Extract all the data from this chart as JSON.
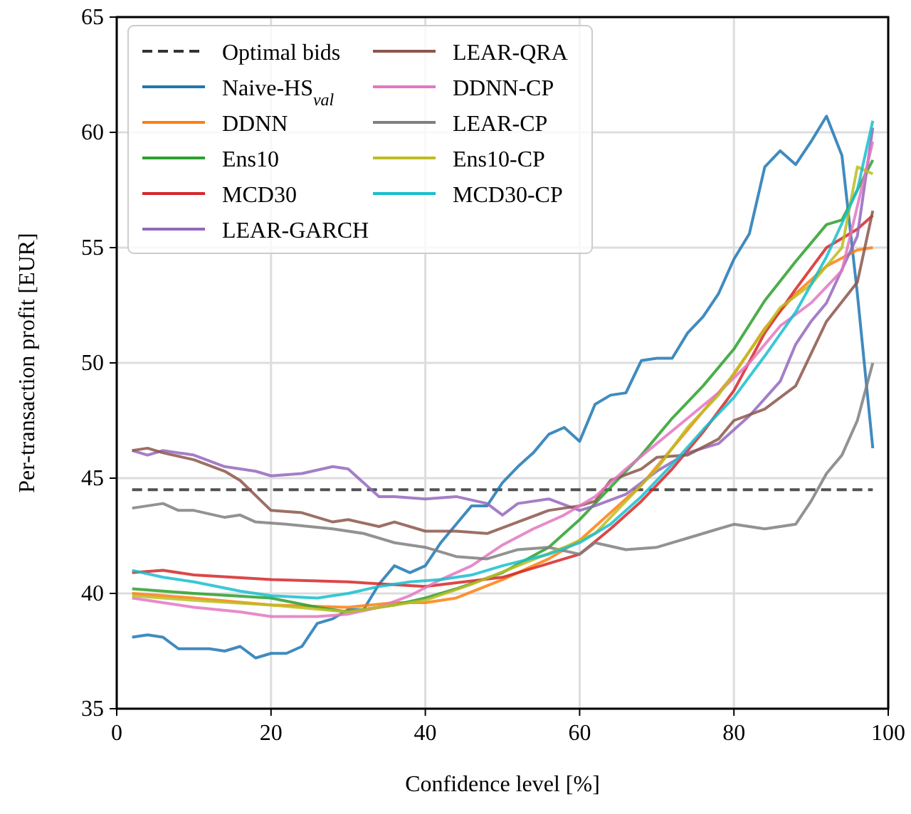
{
  "chart_data": {
    "type": "line",
    "xlabel": "Confidence level [%]",
    "ylabel": "Per-transaction profit [EUR]",
    "xlim": [
      0,
      100
    ],
    "ylim": [
      35,
      65
    ],
    "xticks": [
      0,
      20,
      40,
      60,
      80,
      100
    ],
    "yticks": [
      35,
      40,
      45,
      50,
      55,
      60,
      65
    ],
    "grid": true,
    "legend": "top left",
    "line_style": "solid",
    "marker": "none",
    "series": [
      {
        "name": "Optimal bids",
        "color": "#333333",
        "line_style": "dashed",
        "x": [
          2,
          98
        ],
        "values": [
          44.5,
          44.5
        ]
      },
      {
        "name": "Naive-HS$_{val}$",
        "color": "#1f77b4",
        "x": [
          2,
          4,
          6,
          8,
          10,
          12,
          14,
          16,
          18,
          20,
          22,
          24,
          26,
          28,
          30,
          32,
          34,
          36,
          38,
          40,
          42,
          44,
          46,
          48,
          50,
          52,
          54,
          56,
          58,
          60,
          62,
          64,
          66,
          68,
          70,
          72,
          74,
          76,
          78,
          80,
          82,
          84,
          86,
          88,
          90,
          92,
          94,
          96,
          98
        ],
        "values": [
          38.1,
          38.2,
          38.1,
          37.6,
          37.6,
          37.6,
          37.5,
          37.7,
          37.2,
          37.4,
          37.4,
          37.7,
          38.7,
          38.9,
          39.3,
          39.3,
          40.4,
          41.2,
          40.9,
          41.2,
          42.2,
          43.0,
          43.8,
          43.8,
          44.8,
          45.5,
          46.1,
          46.9,
          47.2,
          46.6,
          48.2,
          48.6,
          48.7,
          50.1,
          50.2,
          50.2,
          51.3,
          52.0,
          53.0,
          54.5,
          55.6,
          58.5,
          59.2,
          58.6,
          59.6,
          60.7,
          59.0,
          53.0,
          46.3
        ]
      },
      {
        "name": "DDNN",
        "color": "#ff7f0e",
        "x": [
          2,
          10,
          20,
          30,
          36,
          40,
          44,
          50,
          56,
          60,
          64,
          68,
          72,
          76,
          80,
          84,
          88,
          92,
          96,
          98
        ],
        "values": [
          40.0,
          39.8,
          39.5,
          39.4,
          39.6,
          39.6,
          39.8,
          40.6,
          41.5,
          42.3,
          43.5,
          44.7,
          46.3,
          47.9,
          49.5,
          51.5,
          53.0,
          54.2,
          54.9,
          55.0
        ]
      },
      {
        "name": "Ens10",
        "color": "#2ca02c",
        "x": [
          2,
          10,
          20,
          26,
          30,
          36,
          40,
          44,
          50,
          56,
          60,
          64,
          68,
          72,
          76,
          80,
          84,
          88,
          92,
          94,
          98
        ],
        "values": [
          40.2,
          40.0,
          39.8,
          39.4,
          39.2,
          39.5,
          39.8,
          40.2,
          40.9,
          42.0,
          43.2,
          44.6,
          46.0,
          47.6,
          49.0,
          50.6,
          52.7,
          54.4,
          56.0,
          56.2,
          58.8
        ]
      },
      {
        "name": "MCD30",
        "color": "#d62728",
        "x": [
          2,
          6,
          10,
          20,
          30,
          40,
          50,
          56,
          60,
          64,
          68,
          72,
          76,
          80,
          84,
          88,
          92,
          96,
          98
        ],
        "values": [
          40.9,
          41.0,
          40.8,
          40.6,
          40.5,
          40.3,
          40.7,
          41.3,
          41.7,
          42.8,
          44.0,
          45.4,
          47.0,
          48.8,
          51.3,
          53.2,
          55.0,
          55.8,
          56.4
        ]
      },
      {
        "name": "LEAR-GARCH",
        "color": "#9467bd",
        "x": [
          2,
          4,
          6,
          10,
          14,
          18,
          20,
          24,
          28,
          30,
          34,
          36,
          40,
          44,
          48,
          50,
          52,
          56,
          60,
          62,
          66,
          70,
          74,
          78,
          82,
          86,
          88,
          90,
          92,
          96,
          98
        ],
        "values": [
          46.2,
          46.0,
          46.2,
          46.0,
          45.5,
          45.3,
          45.1,
          45.2,
          45.5,
          45.4,
          44.2,
          44.2,
          44.1,
          44.2,
          43.9,
          43.4,
          43.9,
          44.1,
          43.6,
          43.8,
          44.3,
          45.3,
          46.1,
          46.5,
          47.7,
          49.2,
          50.8,
          51.8,
          52.6,
          55.5,
          60.2
        ]
      },
      {
        "name": "LEAR-QRA",
        "color": "#8c564b",
        "x": [
          2,
          4,
          6,
          10,
          14,
          16,
          20,
          24,
          28,
          30,
          34,
          36,
          40,
          44,
          48,
          52,
          56,
          60,
          62,
          64,
          68,
          70,
          74,
          78,
          80,
          84,
          88,
          92,
          96,
          98
        ],
        "values": [
          46.2,
          46.3,
          46.1,
          45.8,
          45.3,
          44.9,
          43.6,
          43.5,
          43.1,
          43.2,
          42.9,
          43.1,
          42.7,
          42.7,
          42.6,
          43.1,
          43.6,
          43.8,
          44.0,
          44.9,
          45.4,
          45.9,
          46.0,
          46.7,
          47.5,
          48.0,
          49.0,
          51.8,
          53.5,
          56.6
        ]
      },
      {
        "name": "DDNN-CP",
        "color": "#e377c2",
        "x": [
          2,
          6,
          10,
          16,
          20,
          26,
          30,
          34,
          38,
          42,
          46,
          50,
          54,
          58,
          62,
          66,
          70,
          74,
          78,
          82,
          86,
          90,
          94,
          98
        ],
        "values": [
          39.8,
          39.6,
          39.4,
          39.2,
          39.0,
          39.0,
          39.1,
          39.4,
          39.9,
          40.6,
          41.2,
          42.1,
          42.8,
          43.4,
          44.2,
          45.4,
          46.5,
          47.6,
          48.7,
          50.0,
          51.6,
          52.6,
          54.0,
          59.6
        ]
      },
      {
        "name": "LEAR-CP",
        "color": "#7f7f7f",
        "x": [
          2,
          6,
          8,
          10,
          14,
          16,
          18,
          22,
          28,
          32,
          36,
          40,
          44,
          48,
          52,
          56,
          60,
          62,
          66,
          70,
          74,
          78,
          80,
          84,
          88,
          90,
          92,
          94,
          96,
          98
        ],
        "values": [
          43.7,
          43.9,
          43.6,
          43.6,
          43.3,
          43.4,
          43.1,
          43.0,
          42.8,
          42.6,
          42.2,
          42.0,
          41.6,
          41.5,
          41.9,
          42.0,
          41.7,
          42.2,
          41.9,
          42.0,
          42.4,
          42.8,
          43.0,
          42.8,
          43.0,
          44.0,
          45.2,
          46.0,
          47.5,
          50.0
        ]
      },
      {
        "name": "Ens10-CP",
        "color": "#bcbd22",
        "x": [
          2,
          10,
          20,
          30,
          36,
          40,
          46,
          52,
          58,
          62,
          66,
          70,
          74,
          78,
          82,
          86,
          90,
          94,
          96,
          98
        ],
        "values": [
          39.9,
          39.7,
          39.5,
          39.2,
          39.5,
          39.7,
          40.4,
          41.2,
          42.0,
          42.6,
          44.0,
          45.4,
          47.2,
          48.6,
          50.5,
          52.4,
          53.4,
          55.0,
          58.5,
          58.2
        ]
      },
      {
        "name": "MCD30-CP",
        "color": "#17becf",
        "x": [
          2,
          6,
          10,
          16,
          20,
          26,
          30,
          34,
          38,
          42,
          46,
          50,
          56,
          60,
          64,
          68,
          72,
          76,
          80,
          84,
          88,
          92,
          96,
          98
        ],
        "values": [
          41.0,
          40.7,
          40.5,
          40.1,
          39.9,
          39.8,
          40.0,
          40.3,
          40.5,
          40.6,
          40.8,
          41.2,
          41.7,
          42.2,
          43.0,
          44.2,
          45.6,
          47.1,
          48.5,
          50.3,
          52.2,
          54.6,
          57.5,
          60.5
        ]
      }
    ]
  }
}
